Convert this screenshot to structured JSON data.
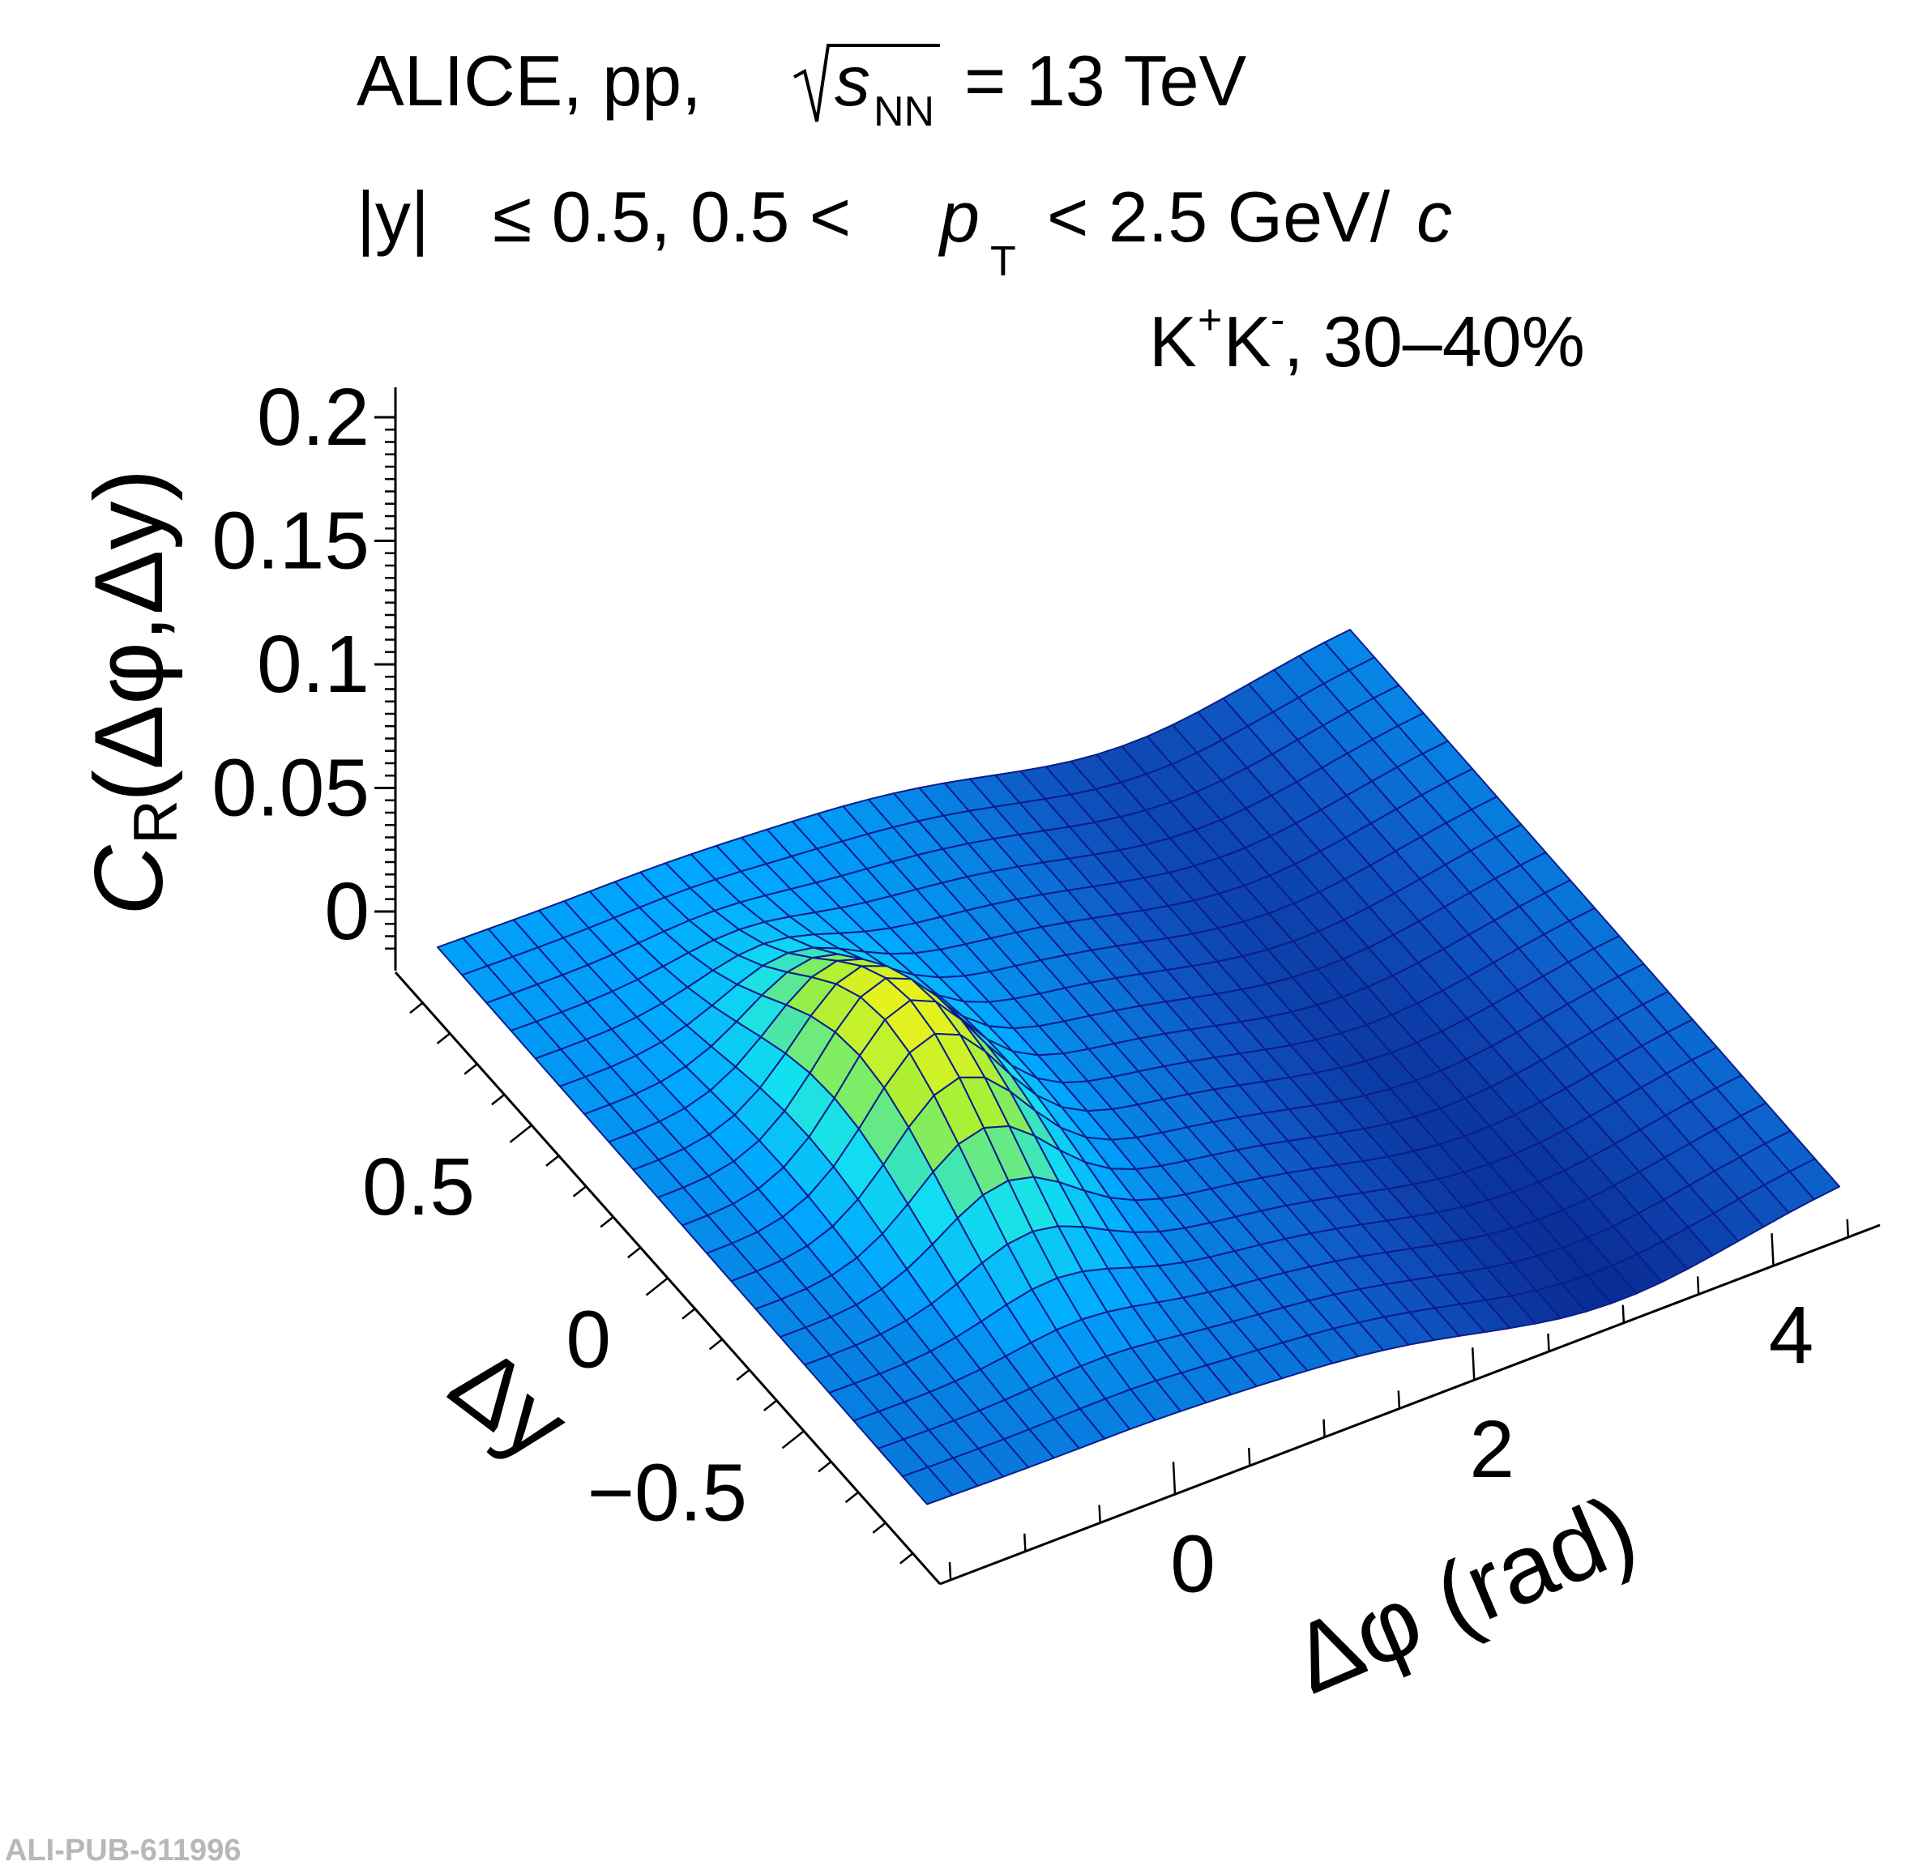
{
  "header": {
    "line1_prefix": "ALICE, pp,",
    "line1_var": "s",
    "line1_sub": "NN",
    "line1_suffix": "= 13 TeV",
    "line2_abs_y": "|y|",
    "line2_mid": "≤ 0.5, 0.5 <",
    "line2_pt": "p",
    "line2_pt_sub": "T",
    "line2_suffix": "< 2.5 GeV/",
    "line2_c": "c",
    "line3_k1": "K",
    "line3_plus": "+",
    "line3_k2": "K",
    "line3_minus": "-",
    "line3_suffix": ", 30–40%"
  },
  "watermark": "ALI-PUB-611996",
  "chart_data": {
    "type": "surface",
    "zlabel": "C_R(Δφ,Δy)",
    "zlabel_parts": {
      "C": "C",
      "sub": "R",
      "args": "(Δφ,Δy)"
    },
    "xlabel": "Δφ (rad)",
    "ylabel": "Δy",
    "x_ticks": [
      "0",
      "2",
      "4"
    ],
    "y_ticks": [
      "0.5",
      "0",
      "−0.5"
    ],
    "z_ticks": [
      "0.2",
      "0.15",
      "0.1",
      "0.05",
      "0"
    ],
    "xlim": [
      -1.5708,
      4.7124
    ],
    "ylim": [
      -1.0,
      1.0
    ],
    "zlim": [
      -0.02,
      0.2
    ],
    "grid_nx": 36,
    "grid_ny": 20,
    "surface_model": {
      "background": -0.005,
      "near_side_peak": {
        "amplitude": 0.058,
        "sigma_dphi": 0.45,
        "sigma_dy": 0.35
      },
      "away_side_ridge": {
        "amplitude": -0.018,
        "center_dphi": 3.1416,
        "sigma_dphi": 0.9
      },
      "dy_slope": 0.004
    },
    "peak_value": 0.053,
    "colormap": [
      "#0a2a93",
      "#0f57c4",
      "#00a6ff",
      "#12e0f0",
      "#9ef03c",
      "#f3f218"
    ]
  }
}
